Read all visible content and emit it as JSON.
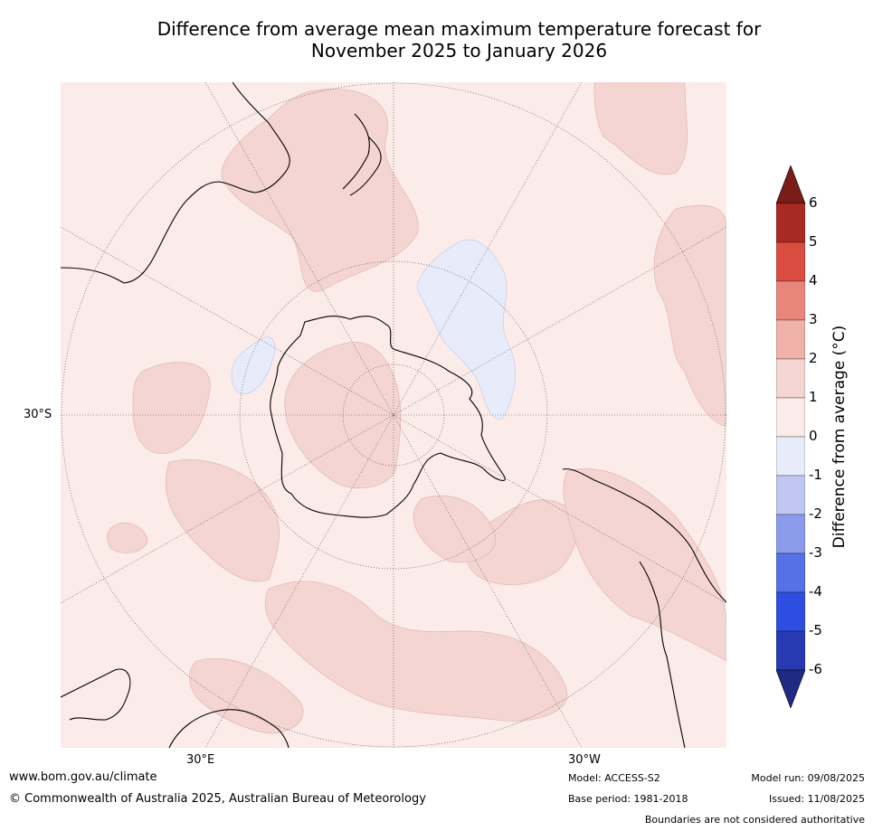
{
  "title_line1": "Difference from average mean maximum temperature forecast for",
  "title_line2": "November 2025 to January 2026",
  "map": {
    "lat_label": "30°S",
    "lon_labels": [
      "30°E",
      "30°W"
    ]
  },
  "colorbar": {
    "label": "Difference from average (°C)",
    "ticks": [
      "6",
      "5",
      "4",
      "3",
      "2",
      "1",
      "0",
      "-1",
      "-2",
      "-3",
      "-4",
      "-5",
      "-6"
    ],
    "colors": [
      "#7a1c17",
      "#a82a22",
      "#d94c3f",
      "#e8867c",
      "#f0b1a9",
      "#f5d5d2",
      "#fbebe9",
      "#e8ecfa",
      "#c0c8f2",
      "#8a9bec",
      "#5670e5",
      "#2d4ee0",
      "#273ab4",
      "#1f2b82"
    ]
  },
  "footer": {
    "website": "www.bom.gov.au/climate",
    "copyright": "© Commonwealth of Australia 2025, Australian Bureau of Meteorology",
    "model": "Model: ACCESS-S2",
    "base_period": "Base period: 1981-2018",
    "model_run": "Model run: 09/08/2025",
    "issued": "Issued: 11/08/2025",
    "disclaimer": "Boundaries are not considered authoritative"
  }
}
